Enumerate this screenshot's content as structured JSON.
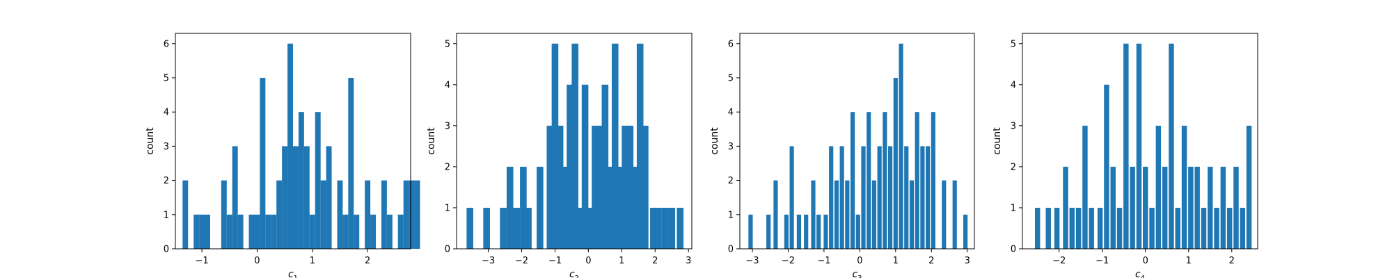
{
  "chart_data": [
    {
      "type": "bar",
      "xlabel_base": "c",
      "xlabel_sub": "1",
      "ylabel": "count",
      "bin_width": 0.1,
      "xlim": [
        -1.48,
        2.78
      ],
      "ylim": [
        0,
        6.3
      ],
      "xticks": [
        -1,
        0,
        1,
        2
      ],
      "yticks": [
        0,
        1,
        2,
        3,
        4,
        5,
        6
      ],
      "bars": [
        {
          "x": -1.3,
          "count": 2
        },
        {
          "x": -1.1,
          "count": 1
        },
        {
          "x": -1.0,
          "count": 1
        },
        {
          "x": -0.9,
          "count": 1
        },
        {
          "x": -0.6,
          "count": 2
        },
        {
          "x": -0.5,
          "count": 1
        },
        {
          "x": -0.4,
          "count": 3
        },
        {
          "x": -0.3,
          "count": 1
        },
        {
          "x": -0.1,
          "count": 1
        },
        {
          "x": 0.0,
          "count": 1
        },
        {
          "x": 0.1,
          "count": 5
        },
        {
          "x": 0.2,
          "count": 1
        },
        {
          "x": 0.3,
          "count": 1
        },
        {
          "x": 0.4,
          "count": 2
        },
        {
          "x": 0.5,
          "count": 3
        },
        {
          "x": 0.6,
          "count": 6
        },
        {
          "x": 0.7,
          "count": 3
        },
        {
          "x": 0.8,
          "count": 4
        },
        {
          "x": 0.9,
          "count": 3
        },
        {
          "x": 1.0,
          "count": 1
        },
        {
          "x": 1.1,
          "count": 4
        },
        {
          "x": 1.2,
          "count": 2
        },
        {
          "x": 1.3,
          "count": 3
        },
        {
          "x": 1.4,
          "count": 0
        },
        {
          "x": 1.5,
          "count": 2
        },
        {
          "x": 1.6,
          "count": 1
        },
        {
          "x": 1.7,
          "count": 5
        },
        {
          "x": 1.8,
          "count": 1
        },
        {
          "x": 2.0,
          "count": 2
        },
        {
          "x": 2.1,
          "count": 1
        },
        {
          "x": 2.3,
          "count": 2
        },
        {
          "x": 2.4,
          "count": 1
        },
        {
          "x": 2.6,
          "count": 1
        },
        {
          "x": 2.7,
          "count": 2
        },
        {
          "x": 2.8,
          "count": 2
        },
        {
          "x": 2.9,
          "count": 2
        }
      ]
    },
    {
      "type": "bar",
      "xlabel_base": "c",
      "xlabel_sub": "2",
      "ylabel": "count",
      "bin_width": 0.2,
      "xlim": [
        -3.95,
        3.1
      ],
      "ylim": [
        0,
        5.25
      ],
      "xticks": [
        -3,
        -2,
        -1,
        0,
        1,
        2,
        3
      ],
      "yticks": [
        0,
        1,
        2,
        3,
        4,
        5
      ],
      "bars": [
        {
          "x": -3.55,
          "count": 1
        },
        {
          "x": -3.05,
          "count": 1
        },
        {
          "x": -2.55,
          "count": 1
        },
        {
          "x": -2.35,
          "count": 2
        },
        {
          "x": -2.15,
          "count": 1
        },
        {
          "x": -1.95,
          "count": 2
        },
        {
          "x": -1.8,
          "count": 1
        },
        {
          "x": -1.45,
          "count": 2
        },
        {
          "x": -1.15,
          "count": 3
        },
        {
          "x": -1.0,
          "count": 5
        },
        {
          "x": -0.85,
          "count": 3
        },
        {
          "x": -0.7,
          "count": 2
        },
        {
          "x": -0.55,
          "count": 4
        },
        {
          "x": -0.4,
          "count": 5
        },
        {
          "x": -0.25,
          "count": 1
        },
        {
          "x": -0.1,
          "count": 4
        },
        {
          "x": 0.05,
          "count": 1
        },
        {
          "x": 0.2,
          "count": 3
        },
        {
          "x": 0.35,
          "count": 3
        },
        {
          "x": 0.5,
          "count": 4
        },
        {
          "x": 0.65,
          "count": 2
        },
        {
          "x": 0.8,
          "count": 5
        },
        {
          "x": 0.95,
          "count": 2
        },
        {
          "x": 1.1,
          "count": 3
        },
        {
          "x": 1.25,
          "count": 3
        },
        {
          "x": 1.4,
          "count": 2
        },
        {
          "x": 1.55,
          "count": 5
        },
        {
          "x": 1.7,
          "count": 3
        },
        {
          "x": 1.95,
          "count": 1
        },
        {
          "x": 2.1,
          "count": 1
        },
        {
          "x": 2.3,
          "count": 1
        },
        {
          "x": 2.5,
          "count": 1
        },
        {
          "x": 2.75,
          "count": 1
        }
      ]
    },
    {
      "type": "bar",
      "xlabel_base": "c",
      "xlabel_sub": "3",
      "ylabel": "count",
      "bin_width": 0.12,
      "xlim": [
        -3.35,
        3.2
      ],
      "ylim": [
        0,
        6.3
      ],
      "xticks": [
        -3,
        -2,
        -1,
        0,
        1,
        2,
        3
      ],
      "yticks": [
        0,
        1,
        2,
        3,
        4,
        5,
        6
      ],
      "bars": [
        {
          "x": -3.05,
          "count": 1
        },
        {
          "x": -2.55,
          "count": 1
        },
        {
          "x": -2.35,
          "count": 2
        },
        {
          "x": -2.05,
          "count": 1
        },
        {
          "x": -1.9,
          "count": 3
        },
        {
          "x": -1.7,
          "count": 1
        },
        {
          "x": -1.5,
          "count": 1
        },
        {
          "x": -1.3,
          "count": 2
        },
        {
          "x": -1.15,
          "count": 1
        },
        {
          "x": -0.95,
          "count": 1
        },
        {
          "x": -0.8,
          "count": 3
        },
        {
          "x": -0.65,
          "count": 2
        },
        {
          "x": -0.5,
          "count": 3
        },
        {
          "x": -0.35,
          "count": 2
        },
        {
          "x": -0.2,
          "count": 4
        },
        {
          "x": -0.05,
          "count": 1
        },
        {
          "x": 0.1,
          "count": 3
        },
        {
          "x": 0.25,
          "count": 4
        },
        {
          "x": 0.4,
          "count": 2
        },
        {
          "x": 0.55,
          "count": 3
        },
        {
          "x": 0.7,
          "count": 4
        },
        {
          "x": 0.85,
          "count": 3
        },
        {
          "x": 1.0,
          "count": 5
        },
        {
          "x": 1.15,
          "count": 6
        },
        {
          "x": 1.3,
          "count": 3
        },
        {
          "x": 1.45,
          "count": 2
        },
        {
          "x": 1.6,
          "count": 4
        },
        {
          "x": 1.75,
          "count": 3
        },
        {
          "x": 1.9,
          "count": 3
        },
        {
          "x": 2.05,
          "count": 4
        },
        {
          "x": 2.35,
          "count": 2
        },
        {
          "x": 2.65,
          "count": 2
        },
        {
          "x": 2.95,
          "count": 1
        }
      ]
    },
    {
      "type": "bar",
      "xlabel_base": "c",
      "xlabel_sub": "4",
      "ylabel": "count",
      "bin_width": 0.12,
      "xlim": [
        -2.85,
        2.6
      ],
      "ylim": [
        0,
        5.25
      ],
      "xticks": [
        -2,
        -1,
        0,
        1,
        2
      ],
      "yticks": [
        0,
        1,
        2,
        3,
        4,
        5
      ],
      "bars": [
        {
          "x": -2.5,
          "count": 1
        },
        {
          "x": -2.25,
          "count": 1
        },
        {
          "x": -2.05,
          "count": 1
        },
        {
          "x": -1.85,
          "count": 2
        },
        {
          "x": -1.7,
          "count": 1
        },
        {
          "x": -1.55,
          "count": 1
        },
        {
          "x": -1.4,
          "count": 3
        },
        {
          "x": -1.25,
          "count": 1
        },
        {
          "x": -1.05,
          "count": 1
        },
        {
          "x": -0.9,
          "count": 4
        },
        {
          "x": -0.75,
          "count": 2
        },
        {
          "x": -0.6,
          "count": 1
        },
        {
          "x": -0.45,
          "count": 5
        },
        {
          "x": -0.3,
          "count": 2
        },
        {
          "x": -0.15,
          "count": 5
        },
        {
          "x": 0.0,
          "count": 2
        },
        {
          "x": 0.15,
          "count": 1
        },
        {
          "x": 0.3,
          "count": 3
        },
        {
          "x": 0.45,
          "count": 2
        },
        {
          "x": 0.6,
          "count": 5
        },
        {
          "x": 0.75,
          "count": 1
        },
        {
          "x": 0.9,
          "count": 3
        },
        {
          "x": 1.05,
          "count": 2
        },
        {
          "x": 1.2,
          "count": 2
        },
        {
          "x": 1.35,
          "count": 1
        },
        {
          "x": 1.5,
          "count": 2
        },
        {
          "x": 1.65,
          "count": 1
        },
        {
          "x": 1.8,
          "count": 2
        },
        {
          "x": 1.95,
          "count": 1
        },
        {
          "x": 2.1,
          "count": 2
        },
        {
          "x": 2.25,
          "count": 1
        },
        {
          "x": 2.4,
          "count": 3
        }
      ]
    }
  ],
  "style": {
    "bar_color": "#1f77b4",
    "axis_color": "#000000",
    "background": "#ffffff"
  }
}
